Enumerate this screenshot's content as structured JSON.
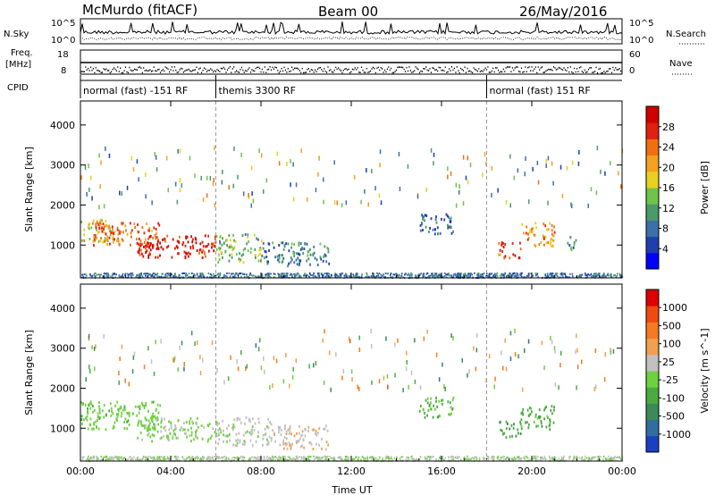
{
  "header": {
    "station": "McMurdo (fitACF)",
    "beam": "Beam 00",
    "date": "26/May/2016"
  },
  "strip_labels": {
    "nsky": "N.Sky",
    "nsearch": "N.Search",
    "freq_top": "Freq.",
    "freq_unit": "[MHz]",
    "nave": "Nave",
    "cpid": "CPID",
    "nsky_hi": "10^5",
    "nsky_lo": "10^0",
    "freq_hi": "18",
    "freq_lo": "8",
    "nave_hi": "60",
    "nave_lo": "0"
  },
  "cpid_modes": [
    {
      "label": "normal (fast) -151 RF",
      "start_h": 0,
      "end_h": 6
    },
    {
      "label": "themis 3300 RF",
      "start_h": 6,
      "end_h": 18
    },
    {
      "label": "normal (fast) 151 RF",
      "start_h": 18,
      "end_h": 24
    }
  ],
  "chart_data": [
    {
      "type": "heatmap",
      "title": "Power",
      "xlabel": "Time UT",
      "ylabel": "Slant Range [km]",
      "xlim": [
        0,
        24
      ],
      "ylim": [
        180,
        4600
      ],
      "x_ticks": [
        "00:00",
        "04:00",
        "08:00",
        "12:00",
        "16:00",
        "20:00",
        "00:00"
      ],
      "y_ticks": [
        1000,
        2000,
        3000,
        4000
      ],
      "colorbar": {
        "label": "Power [dB]",
        "ticks": [
          "4",
          "8",
          "12",
          "16",
          "20",
          "24",
          "28"
        ],
        "colors": [
          "#0000ff",
          "#1f3fae",
          "#3d6fa8",
          "#4a9a6a",
          "#6fc34a",
          "#e8d020",
          "#f5a020",
          "#f07010",
          "#e02010",
          "#d00000"
        ],
        "range": [
          0,
          32
        ]
      },
      "blobs": [
        {
          "t0": 0.0,
          "t1": 1.5,
          "r0": 1100,
          "r1": 1700,
          "value": 18
        },
        {
          "t0": 0.5,
          "t1": 3.5,
          "r0": 1000,
          "r1": 1600,
          "value": 24
        },
        {
          "t0": 2.5,
          "t1": 6.0,
          "r0": 700,
          "r1": 1300,
          "value": 29
        },
        {
          "t0": 6.0,
          "t1": 8.0,
          "r0": 600,
          "r1": 1300,
          "value": 14
        },
        {
          "t0": 8.0,
          "t1": 11.0,
          "r0": 500,
          "r1": 1100,
          "value": 9
        },
        {
          "t0": 15.0,
          "t1": 16.5,
          "r0": 1300,
          "r1": 1800,
          "value": 8
        },
        {
          "t0": 18.5,
          "t1": 19.5,
          "r0": 700,
          "r1": 1100,
          "value": 26
        },
        {
          "t0": 19.5,
          "t1": 21.0,
          "r0": 1000,
          "r1": 1600,
          "value": 22
        },
        {
          "t0": 21.5,
          "t1": 22.0,
          "r0": 900,
          "r1": 1300,
          "value": 10
        }
      ]
    },
    {
      "type": "heatmap",
      "title": "Velocity",
      "xlabel": "Time UT",
      "ylabel": "Slant Range [km]",
      "xlim": [
        0,
        24
      ],
      "ylim": [
        180,
        4600
      ],
      "x_ticks": [
        "00:00",
        "04:00",
        "08:00",
        "12:00",
        "16:00",
        "20:00",
        "00:00"
      ],
      "y_ticks": [
        1000,
        2000,
        3000,
        4000
      ],
      "colorbar": {
        "label": "Velocity [m s^-1]",
        "ticks": [
          "1000",
          "500",
          "100",
          "25",
          "-25",
          "-100",
          "-500",
          "-1000"
        ],
        "colors": [
          "#1a3fc0",
          "#2f6fa0",
          "#3c8a5a",
          "#4aaa40",
          "#6fd040",
          "#c0c0c0",
          "#f0a050",
          "#f57a20",
          "#f04a10",
          "#e00000"
        ],
        "range": [
          -1200,
          1200
        ]
      },
      "blobs": [
        {
          "t0": 0.0,
          "t1": 3.5,
          "r0": 1000,
          "r1": 1700,
          "value": -150
        },
        {
          "t0": 2.5,
          "t1": 6.0,
          "r0": 700,
          "r1": 1300,
          "value": -60
        },
        {
          "t0": 6.0,
          "t1": 8.5,
          "r0": 600,
          "r1": 1300,
          "value": 60
        },
        {
          "t0": 8.5,
          "t1": 11.0,
          "r0": 500,
          "r1": 1100,
          "value": 200
        },
        {
          "t0": 15.0,
          "t1": 16.5,
          "r0": 1300,
          "r1": 1800,
          "value": -300
        },
        {
          "t0": 18.5,
          "t1": 19.5,
          "r0": 800,
          "r1": 1200,
          "value": -400
        },
        {
          "t0": 19.5,
          "t1": 21.0,
          "r0": 1000,
          "r1": 1600,
          "value": -350
        }
      ]
    }
  ]
}
